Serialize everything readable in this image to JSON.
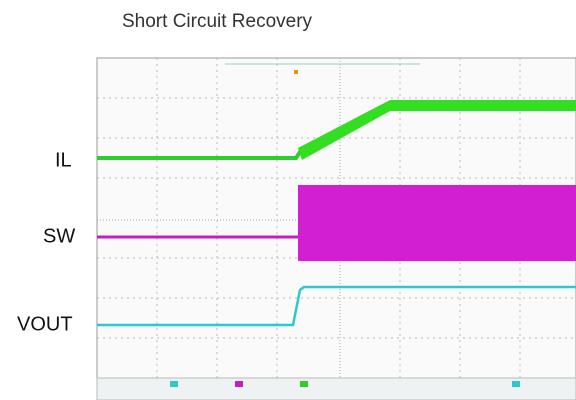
{
  "title": "Short Circuit Recovery",
  "channels": [
    {
      "label": "IL"
    },
    {
      "label": "SW"
    },
    {
      "label": "VOUT"
    }
  ]
}
